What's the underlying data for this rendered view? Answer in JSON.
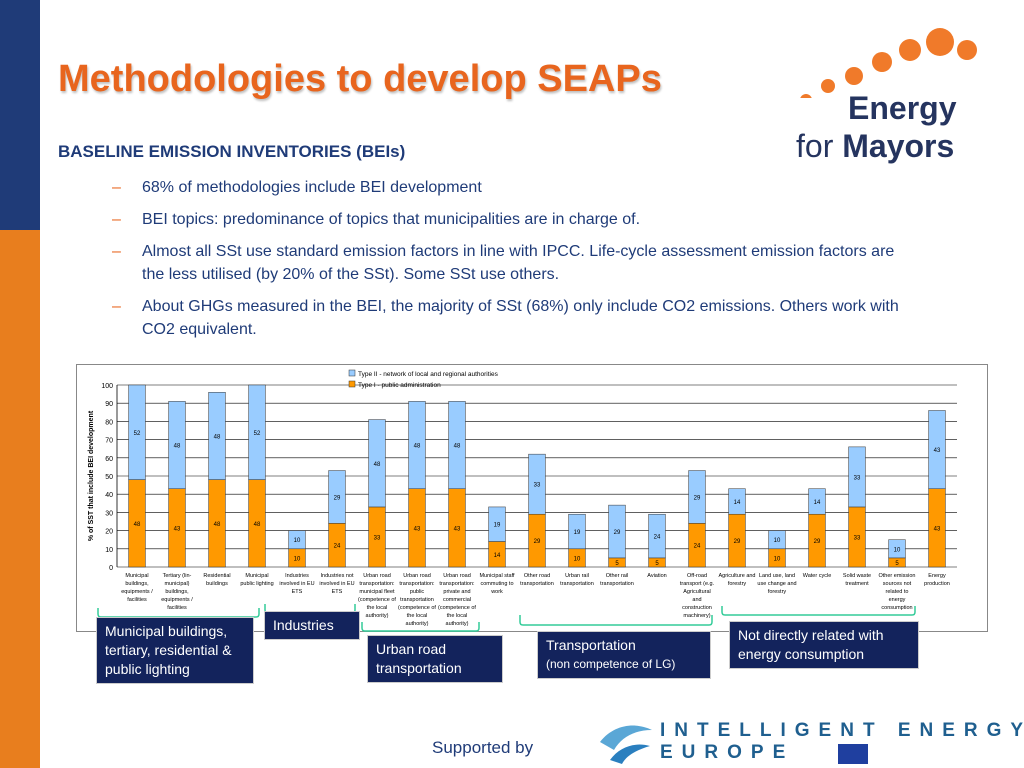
{
  "slide": {
    "title": "Methodologies to develop SEAPs",
    "subtitle": "BASELINE EMISSION INVENTORIES (BEIs)",
    "bullets": [
      "68% of methodologies include BEI development",
      "BEI topics: predominance of topics that municipalities are in charge of.",
      "Almost all SSt use standard emission factors in line with IPCC. Life-cycle assessment emission factors are the less utilised (by 20% of the SSt). Some SSt use others.",
      "About GHGs measured in the BEI, the majority of SSt (68%) only include CO2 emissions. Others work with CO2 equivalent."
    ],
    "bullet_marker": "–"
  },
  "logo": {
    "line1": "Energy",
    "line2_prefix": "for",
    "line2_bold": "Mayors",
    "dot_color": "#f07a2a"
  },
  "callouts": {
    "municipal": "Municipal buildings, tertiary, residential & public lighting",
    "industries": "Industries",
    "urban_road": "Urban road transportation",
    "transportation": "Transportation",
    "transportation_note": "(non competence of LG)",
    "not_related": "Not directly related with energy consumption"
  },
  "footer": {
    "supported_by": "Supported by",
    "iee_line1": "INTELLIGENT ENERGY",
    "iee_line2": "EUROPE"
  },
  "colors": {
    "title": "#e8651e",
    "text": "#1f3b78",
    "bar_type1": "#ff9900",
    "bar_type2": "#99ccff",
    "callout_bg": "#13235c",
    "bracket": "#33cc99"
  },
  "chart_data": {
    "type": "bar",
    "stacked": true,
    "ylabel": "% of SST that include BEI development",
    "ylim": [
      0,
      100
    ],
    "yticks": [
      0,
      10,
      20,
      30,
      40,
      50,
      60,
      70,
      80,
      90,
      100
    ],
    "grid": true,
    "legend_position": "top-center",
    "categories": [
      [
        "Municipal",
        "buildings,",
        "equipments /",
        "facilities"
      ],
      [
        "Tertiary (lin-",
        "municipal)",
        "buildings,",
        "equipments /",
        "facilities"
      ],
      [
        "Residential",
        "buildings"
      ],
      [
        "Municipal",
        "public lighting"
      ],
      [
        "Industries",
        "involved in EU",
        "ETS"
      ],
      [
        "Industries not",
        "involved in EU",
        "ETS"
      ],
      [
        "Urban road",
        "transportation:",
        "municipal fleet",
        "(competence of",
        "the local",
        "authority)"
      ],
      [
        "Urban road",
        "transportation:",
        "public",
        "transportation",
        "(competence of",
        "the local",
        "authority)"
      ],
      [
        "Urban road",
        "transportation:",
        "private and",
        "commercial",
        "(competence of",
        "the local",
        "authority)"
      ],
      [
        "Municipal staff",
        "commuting to",
        "work"
      ],
      [
        "Other road",
        "transportation"
      ],
      [
        "Urban rail",
        "transportation"
      ],
      [
        "Other rail",
        "transportation"
      ],
      [
        "Aviation"
      ],
      [
        "Off-road",
        "transport (e.g.",
        "Agricultural",
        "and",
        "construction",
        "machinery)"
      ],
      [
        "Agriculture and",
        "forestry"
      ],
      [
        "Land use, land",
        "use change and",
        "forestry"
      ],
      [
        "Water cycle"
      ],
      [
        "Solid waste",
        "treatment"
      ],
      [
        "Other emission",
        "sources not",
        "related to",
        "energy",
        "consumption"
      ],
      [
        "Energy",
        "production"
      ]
    ],
    "series": [
      {
        "name": "Type I - public administration",
        "color": "#ff9900",
        "values": [
          48,
          43,
          48,
          48,
          10,
          24,
          33,
          43,
          43,
          14,
          29,
          10,
          5,
          5,
          24,
          29,
          10,
          29,
          33,
          5,
          43
        ]
      },
      {
        "name": "Type II - network of local and regional authorities",
        "color": "#99ccff",
        "values": [
          52,
          48,
          48,
          52,
          10,
          29,
          48,
          48,
          48,
          19,
          33,
          19,
          29,
          24,
          29,
          14,
          10,
          14,
          33,
          10,
          43
        ]
      }
    ],
    "legend_order": [
      1,
      0
    ]
  }
}
